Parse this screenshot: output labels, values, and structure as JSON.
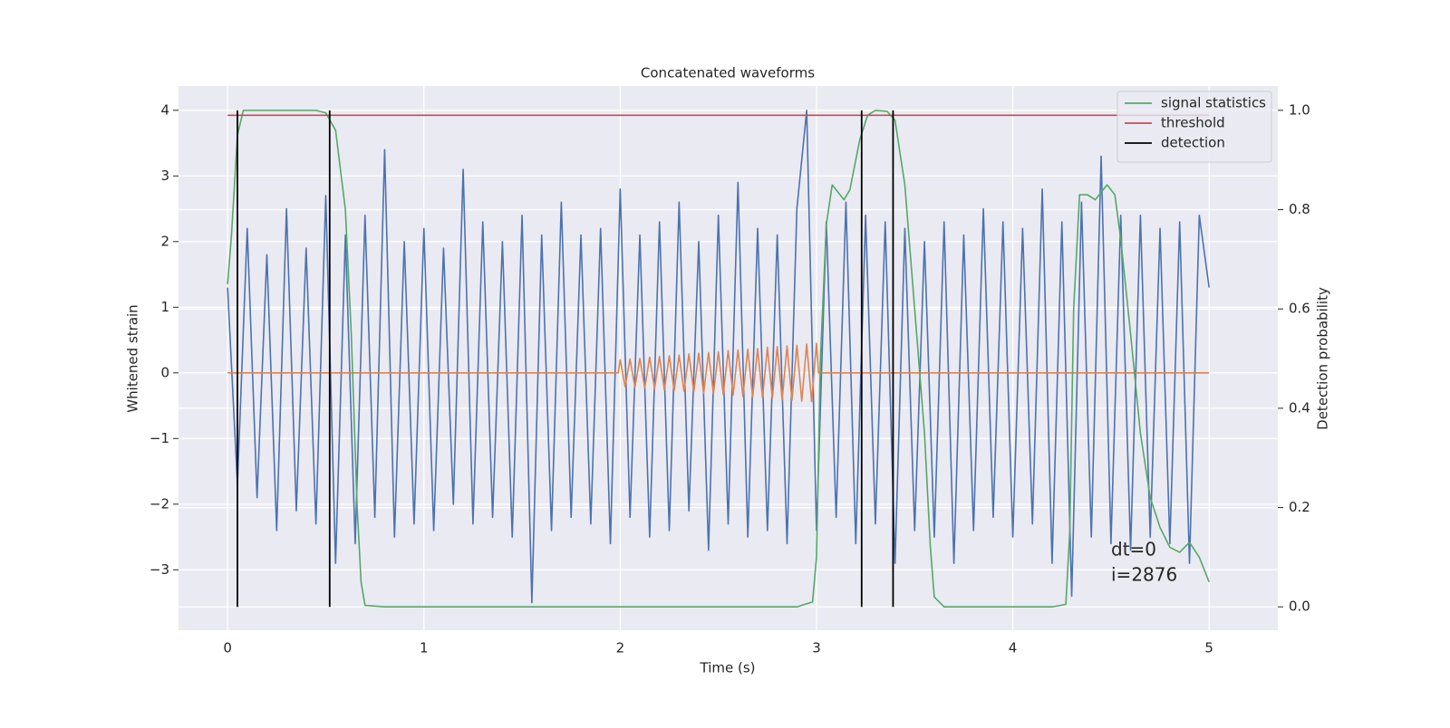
{
  "chart_data": {
    "type": "line",
    "title": "Concatenated waveforms",
    "xlabel": "Time (s)",
    "ylabel": "Whitened strain",
    "y2label": "Detection probability",
    "xlim": [
      -0.25,
      5.35
    ],
    "ylim": [
      -3.92,
      4.37
    ],
    "y2lim": [
      -0.047,
      1.049
    ],
    "xticks": [
      0,
      1,
      2,
      3,
      4,
      5
    ],
    "yticks": [
      {
        "value": -3,
        "label": "−3"
      },
      {
        "value": -2,
        "label": "−2"
      },
      {
        "value": -1,
        "label": "−1"
      },
      0,
      1,
      2,
      3,
      4
    ],
    "y2ticks": [
      {
        "value": 0,
        "label": "0.0"
      },
      0.2,
      0.4,
      0.6,
      0.8,
      {
        "value": 1,
        "label": "1.0"
      }
    ],
    "grid": true,
    "legend": "upper right",
    "annotations": [
      "dt=0",
      "i=2876"
    ],
    "series": [
      {
        "color": "#4c72b0",
        "x": [
          0,
          0.05,
          0.1,
          0.15,
          0.2,
          0.25,
          0.3,
          0.35,
          0.4,
          0.45,
          0.5,
          0.55,
          0.6,
          0.65,
          0.7,
          0.75,
          0.8,
          0.85,
          0.9,
          0.95,
          1,
          1.05,
          1.1,
          1.15,
          1.2,
          1.25,
          1.3,
          1.35,
          1.4,
          1.45,
          1.5,
          1.55,
          1.6,
          1.65,
          1.7,
          1.75,
          1.8,
          1.85,
          1.9,
          1.95,
          2,
          2.05,
          2.1,
          2.15,
          2.2,
          2.25,
          2.3,
          2.35,
          2.4,
          2.45,
          2.5,
          2.55,
          2.6,
          2.65,
          2.7,
          2.75,
          2.8,
          2.85,
          2.9,
          2.95,
          3,
          3.05,
          3.1,
          3.15,
          3.2,
          3.25,
          3.3,
          3.35,
          3.4,
          3.45,
          3.5,
          3.55,
          3.6,
          3.65,
          3.7,
          3.75,
          3.8,
          3.85,
          3.9,
          3.95,
          4,
          4.05,
          4.1,
          4.15,
          4.2,
          4.25,
          4.3,
          4.35,
          4.4,
          4.45,
          4.5,
          4.55,
          4.6,
          4.65,
          4.7,
          4.75,
          4.8,
          4.85,
          4.9,
          4.95,
          5
        ],
        "values": [
          1.3,
          -1.7,
          2.2,
          -1.9,
          1.8,
          -2.4,
          2.5,
          -2.1,
          1.9,
          -2.3,
          2.7,
          -2.9,
          2.1,
          -2.6,
          2.4,
          -2.2,
          3.4,
          -2.5,
          2.0,
          -2.3,
          2.2,
          -2.4,
          1.9,
          -2.0,
          3.1,
          -2.3,
          2.3,
          -2.2,
          2.0,
          -2.5,
          2.4,
          -3.5,
          2.1,
          -2.4,
          2.6,
          -2.2,
          2.1,
          -2.3,
          2.2,
          -2.6,
          2.8,
          -2.2,
          2.1,
          -2.5,
          2.3,
          -2.4,
          2.6,
          -2.1,
          2.0,
          -2.7,
          2.4,
          -2.3,
          2.9,
          -2.5,
          2.2,
          -2.4,
          2.1,
          -2.6,
          2.5,
          4.0,
          -2.4,
          2.3,
          -2.2,
          2.6,
          -2.6,
          2.4,
          -2.3,
          2.3,
          -2.9,
          2.2,
          -2.4,
          2.0,
          -2.5,
          2.3,
          -2.9,
          2.1,
          -2.4,
          2.5,
          -2.2,
          2.3,
          -2.5,
          2.2,
          -2.3,
          2.8,
          -2.9,
          2.3,
          -3.4,
          2.6,
          -2.5,
          3.3,
          -2.6,
          2.4,
          -2.7,
          2.4,
          -2.5,
          2.2,
          -2.6,
          2.3,
          -2.9,
          2.4,
          1.3
        ]
      },
      {
        "color": "#dd8452",
        "x": [
          0,
          1.99,
          2,
          2.025,
          2.05,
          2.075,
          2.1,
          2.125,
          2.15,
          2.175,
          2.2,
          2.225,
          2.25,
          2.275,
          2.3,
          2.325,
          2.35,
          2.375,
          2.4,
          2.425,
          2.45,
          2.475,
          2.5,
          2.525,
          2.55,
          2.575,
          2.6,
          2.625,
          2.65,
          2.675,
          2.7,
          2.725,
          2.75,
          2.775,
          2.8,
          2.825,
          2.85,
          2.875,
          2.9,
          2.925,
          2.95,
          2.975,
          3,
          3.01,
          5
        ],
        "values": [
          0,
          0,
          0.2,
          -0.21,
          0.21,
          -0.22,
          0.22,
          -0.23,
          0.24,
          -0.24,
          0.25,
          -0.26,
          0.26,
          -0.27,
          0.27,
          -0.28,
          0.29,
          -0.29,
          0.3,
          -0.31,
          0.31,
          -0.32,
          0.32,
          -0.33,
          0.34,
          -0.34,
          0.35,
          -0.36,
          0.36,
          -0.37,
          0.37,
          -0.38,
          0.39,
          -0.39,
          0.4,
          -0.41,
          0.41,
          -0.42,
          0.42,
          -0.43,
          0.44,
          -0.44,
          0.45,
          0,
          0
        ]
      },
      {
        "name": "signal statistics",
        "color": "#55a868",
        "axis": "y2",
        "x": [
          0,
          0.02,
          0.05,
          0.08,
          0.2,
          0.45,
          0.5,
          0.55,
          0.6,
          0.63,
          0.66,
          0.68,
          0.7,
          0.8,
          2.9,
          2.98,
          3,
          3.02,
          3.05,
          3.08,
          3.1,
          3.14,
          3.17,
          3.22,
          3.26,
          3.3,
          3.36,
          3.4,
          3.45,
          3.5,
          3.55,
          3.58,
          3.6,
          3.65,
          4.2,
          4.27,
          4.29,
          4.31,
          4.34,
          4.38,
          4.42,
          4.48,
          4.52,
          4.55,
          4.6,
          4.65,
          4.7,
          4.75,
          4.8,
          4.85,
          4.9,
          4.95,
          5
        ],
        "values": [
          0.65,
          0.75,
          0.95,
          1.0,
          1.0,
          1.0,
          0.995,
          0.96,
          0.8,
          0.55,
          0.2,
          0.05,
          0.003,
          0,
          0,
          0.01,
          0.1,
          0.5,
          0.77,
          0.85,
          0.84,
          0.82,
          0.84,
          0.94,
          0.99,
          1.0,
          0.998,
          0.98,
          0.85,
          0.6,
          0.35,
          0.12,
          0.02,
          0,
          0,
          0.005,
          0.15,
          0.6,
          0.83,
          0.83,
          0.82,
          0.85,
          0.83,
          0.74,
          0.55,
          0.35,
          0.22,
          0.16,
          0.12,
          0.11,
          0.13,
          0.1,
          0.05
        ]
      },
      {
        "name": "threshold",
        "color": "#c44e52",
        "axis": "y2",
        "x": [
          0,
          5
        ],
        "values": [
          0.99,
          0.99
        ]
      }
    ],
    "detection": {
      "name": "detection",
      "color": "#000000",
      "axis": "y2",
      "x": [
        0.05,
        0.52,
        3.23,
        3.39
      ],
      "ymin": 0,
      "ymax": 1
    }
  }
}
